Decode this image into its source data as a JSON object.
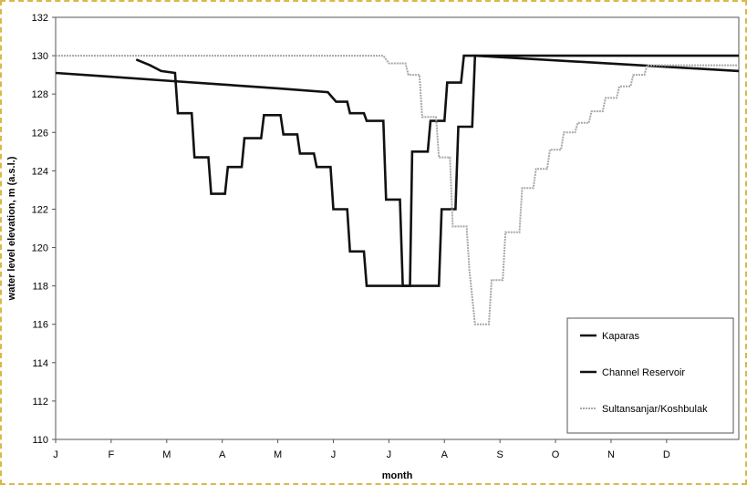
{
  "chart_data": {
    "type": "line",
    "xlabel": "month",
    "ylabel": "water level elevation, m (a.s.l.)",
    "ylim": [
      110,
      132
    ],
    "yticks": [
      110,
      112,
      114,
      116,
      118,
      120,
      122,
      124,
      126,
      128,
      130,
      132
    ],
    "xlim": [
      0,
      12.3
    ],
    "x_ticks": [
      {
        "label": "J",
        "x": 0
      },
      {
        "label": "F",
        "x": 1
      },
      {
        "label": "M",
        "x": 2
      },
      {
        "label": "A",
        "x": 3
      },
      {
        "label": "M",
        "x": 4
      },
      {
        "label": "J",
        "x": 5
      },
      {
        "label": "J",
        "x": 6
      },
      {
        "label": "A",
        "x": 7
      },
      {
        "label": "S",
        "x": 8
      },
      {
        "label": "O",
        "x": 9
      },
      {
        "label": "N",
        "x": 10
      },
      {
        "label": "D",
        "x": 11
      }
    ],
    "grid": false,
    "legend_position": "bottom-right",
    "series": [
      {
        "name": "Kaparas",
        "color": "#111111",
        "style": "solid",
        "points": [
          [
            0.0,
            129.1
          ],
          [
            1.0,
            128.9
          ],
          [
            2.0,
            128.7
          ],
          [
            3.0,
            128.5
          ],
          [
            4.0,
            128.3
          ],
          [
            4.9,
            128.1
          ],
          [
            5.05,
            127.6
          ],
          [
            5.25,
            127.6
          ],
          [
            5.3,
            127.0
          ],
          [
            5.55,
            127.0
          ],
          [
            5.6,
            126.6
          ],
          [
            5.9,
            126.6
          ],
          [
            5.95,
            122.5
          ],
          [
            6.2,
            122.5
          ],
          [
            6.25,
            118.0
          ],
          [
            6.38,
            118.0
          ],
          [
            6.42,
            125.0
          ],
          [
            6.7,
            125.0
          ],
          [
            6.75,
            126.6
          ],
          [
            7.0,
            126.6
          ],
          [
            7.05,
            128.6
          ],
          [
            7.3,
            128.6
          ],
          [
            7.35,
            130.0
          ],
          [
            12.3,
            130.0
          ]
        ]
      },
      {
        "name": "Channel Reservoir",
        "color": "#111111",
        "style": "solid",
        "points": [
          [
            1.45,
            129.8
          ],
          [
            1.7,
            129.5
          ],
          [
            1.9,
            129.2
          ],
          [
            2.15,
            129.1
          ],
          [
            2.2,
            127.0
          ],
          [
            2.45,
            127.0
          ],
          [
            2.5,
            124.7
          ],
          [
            2.75,
            124.7
          ],
          [
            2.8,
            122.8
          ],
          [
            3.05,
            122.8
          ],
          [
            3.1,
            124.2
          ],
          [
            3.35,
            124.2
          ],
          [
            3.4,
            125.7
          ],
          [
            3.7,
            125.7
          ],
          [
            3.75,
            126.9
          ],
          [
            4.05,
            126.9
          ],
          [
            4.1,
            125.9
          ],
          [
            4.35,
            125.9
          ],
          [
            4.4,
            124.9
          ],
          [
            4.65,
            124.9
          ],
          [
            4.7,
            124.2
          ],
          [
            4.95,
            124.2
          ],
          [
            5.0,
            122.0
          ],
          [
            5.25,
            122.0
          ],
          [
            5.3,
            119.8
          ],
          [
            5.55,
            119.8
          ],
          [
            5.6,
            118.0
          ],
          [
            6.9,
            118.0
          ],
          [
            6.95,
            122.0
          ],
          [
            7.2,
            122.0
          ],
          [
            7.25,
            126.3
          ],
          [
            7.5,
            126.3
          ],
          [
            7.55,
            130.0
          ],
          [
            12.3,
            129.2
          ]
        ]
      },
      {
        "name": "Sultansanjar/Koshbulak",
        "color": "#a8a8a8",
        "style": "dotted",
        "points": [
          [
            0.0,
            130.0
          ],
          [
            5.9,
            130.0
          ],
          [
            6.0,
            129.6
          ],
          [
            6.3,
            129.6
          ],
          [
            6.35,
            129.0
          ],
          [
            6.55,
            129.0
          ],
          [
            6.6,
            126.8
          ],
          [
            6.85,
            126.8
          ],
          [
            6.9,
            124.7
          ],
          [
            7.1,
            124.7
          ],
          [
            7.15,
            121.1
          ],
          [
            7.4,
            121.1
          ],
          [
            7.45,
            118.8
          ],
          [
            7.55,
            116.0
          ],
          [
            7.8,
            116.0
          ],
          [
            7.85,
            118.3
          ],
          [
            8.05,
            118.3
          ],
          [
            8.1,
            120.8
          ],
          [
            8.35,
            120.8
          ],
          [
            8.4,
            123.1
          ],
          [
            8.6,
            123.1
          ],
          [
            8.65,
            124.1
          ],
          [
            8.85,
            124.1
          ],
          [
            8.9,
            125.1
          ],
          [
            9.1,
            125.1
          ],
          [
            9.15,
            126.0
          ],
          [
            9.35,
            126.0
          ],
          [
            9.4,
            126.5
          ],
          [
            9.6,
            126.5
          ],
          [
            9.65,
            127.1
          ],
          [
            9.85,
            127.1
          ],
          [
            9.9,
            127.8
          ],
          [
            10.1,
            127.8
          ],
          [
            10.15,
            128.4
          ],
          [
            10.35,
            128.4
          ],
          [
            10.4,
            129.0
          ],
          [
            10.6,
            129.0
          ],
          [
            10.65,
            129.5
          ],
          [
            12.3,
            129.5
          ]
        ]
      }
    ]
  }
}
